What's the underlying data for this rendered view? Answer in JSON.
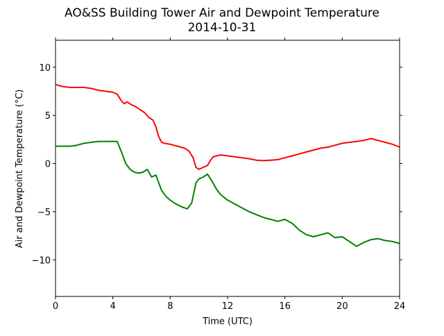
{
  "chart_data": {
    "type": "line",
    "title": "AO&SS Building Tower Air and Dewpoint Temperature",
    "subtitle": "2014-10-31",
    "xlabel": "Time (UTC)",
    "ylabel": "Air and Dewpoint Temperature (°C)",
    "xlim": [
      0,
      24
    ],
    "ylim": [
      -13.8,
      12.8
    ],
    "xticks": [
      0,
      4,
      8,
      12,
      16,
      20,
      24
    ],
    "yticks": [
      -10,
      -5,
      0,
      5,
      10
    ],
    "xtick_labels": [
      "0",
      "4",
      "8",
      "12",
      "16",
      "20",
      "24"
    ],
    "ytick_labels": [
      "−10",
      "−5",
      "0",
      "5",
      "10"
    ],
    "grid": false,
    "series": [
      {
        "color": "#ff0000",
        "x": [
          0.0,
          0.5,
          1.0,
          1.5,
          2.0,
          2.5,
          3.0,
          3.5,
          4.0,
          4.3,
          4.6,
          4.8,
          5.0,
          5.3,
          5.6,
          5.9,
          6.2,
          6.5,
          6.8,
          7.0,
          7.2,
          7.4,
          7.6,
          8.0,
          8.5,
          9.0,
          9.3,
          9.6,
          9.8,
          10.0,
          10.3,
          10.6,
          10.8,
          11.0,
          11.5,
          12.0,
          12.5,
          13.0,
          13.5,
          14.0,
          14.5,
          15.0,
          15.5,
          16.0,
          16.5,
          17.0,
          17.5,
          18.0,
          18.5,
          19.0,
          19.5,
          20.0,
          20.5,
          21.0,
          21.5,
          22.0,
          22.5,
          23.0,
          23.5,
          24.0
        ],
        "y": [
          8.2,
          8.0,
          7.9,
          7.9,
          7.9,
          7.8,
          7.6,
          7.5,
          7.4,
          7.2,
          6.5,
          6.2,
          6.4,
          6.1,
          5.9,
          5.6,
          5.3,
          4.8,
          4.5,
          3.8,
          2.8,
          2.2,
          2.1,
          2.0,
          1.8,
          1.6,
          1.3,
          0.6,
          -0.4,
          -0.6,
          -0.4,
          -0.2,
          0.3,
          0.7,
          0.9,
          0.8,
          0.7,
          0.6,
          0.5,
          0.35,
          0.3,
          0.35,
          0.4,
          0.6,
          0.8,
          1.0,
          1.2,
          1.4,
          1.6,
          1.7,
          1.9,
          2.1,
          2.2,
          2.3,
          2.4,
          2.6,
          2.4,
          2.2,
          2.0,
          1.7
        ]
      },
      {
        "color": "#008000",
        "x": [
          0.0,
          0.5,
          1.0,
          1.5,
          2.0,
          2.5,
          3.0,
          3.5,
          4.0,
          4.3,
          4.6,
          4.9,
          5.2,
          5.5,
          5.8,
          6.1,
          6.4,
          6.7,
          7.0,
          7.2,
          7.4,
          7.7,
          8.0,
          8.4,
          8.8,
          9.2,
          9.5,
          9.8,
          10.0,
          10.3,
          10.6,
          10.9,
          11.2,
          11.5,
          12.0,
          12.5,
          13.0,
          13.5,
          14.0,
          14.5,
          15.0,
          15.5,
          16.0,
          16.5,
          17.0,
          17.5,
          18.0,
          18.5,
          19.0,
          19.5,
          20.0,
          20.5,
          21.0,
          21.5,
          22.0,
          22.5,
          23.0,
          23.5,
          24.0
        ],
        "y": [
          1.8,
          1.8,
          1.8,
          1.9,
          2.1,
          2.2,
          2.3,
          2.3,
          2.3,
          2.3,
          1.2,
          0.0,
          -0.6,
          -0.9,
          -1.0,
          -0.9,
          -0.6,
          -1.4,
          -1.2,
          -2.0,
          -2.8,
          -3.4,
          -3.8,
          -4.2,
          -4.5,
          -4.7,
          -4.1,
          -2.0,
          -1.6,
          -1.4,
          -1.1,
          -1.8,
          -2.6,
          -3.2,
          -3.8,
          -4.2,
          -4.6,
          -5.0,
          -5.3,
          -5.6,
          -5.8,
          -6.0,
          -5.8,
          -6.2,
          -6.9,
          -7.4,
          -7.6,
          -7.4,
          -7.2,
          -7.7,
          -7.6,
          -8.1,
          -8.6,
          -8.2,
          -7.9,
          -7.8,
          -8.0,
          -8.1,
          -8.3
        ]
      }
    ]
  }
}
